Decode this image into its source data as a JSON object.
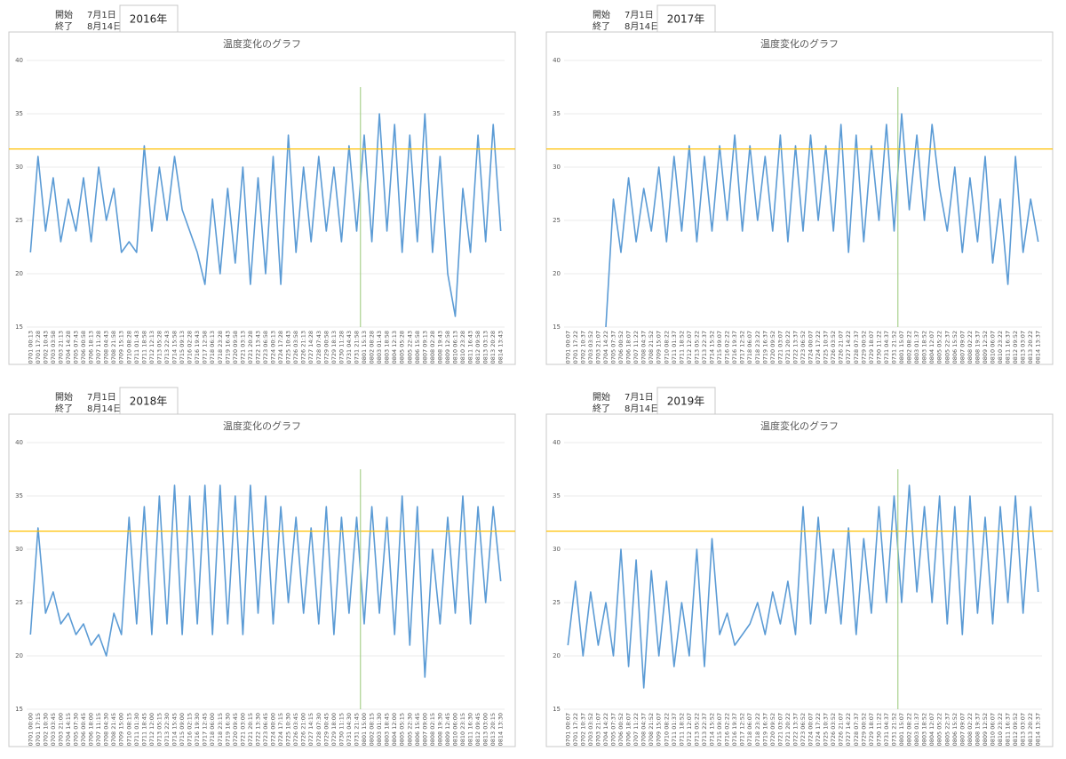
{
  "chart_data": [
    {
      "type": "line",
      "start_label": "開始",
      "start": "7月1日",
      "end_label": "終了",
      "end": "8月14日",
      "year": "2016年",
      "title": "温度変化のグラフ",
      "categories": [
        "0701 00:13",
        "0701 17:28",
        "0702 10:43",
        "0703 03:58",
        "0703 21:13",
        "0704 14:28",
        "0705 07:43",
        "0706 00:58",
        "0706 18:13",
        "0707 11:28",
        "0708 04:43",
        "0708 21:58",
        "0709 15:13",
        "0710 08:28",
        "0711 01:43",
        "0711 18:58",
        "0712 12:13",
        "0713 05:28",
        "0713 22:43",
        "0714 15:58",
        "0715 09:13",
        "0716 02:28",
        "0716 19:43",
        "0717 12:58",
        "0718 06:13",
        "0718 23:28",
        "0719 16:43",
        "0720 09:58",
        "0721 03:13",
        "0721 20:28",
        "0722 13:43",
        "0723 06:58",
        "0724 00:13",
        "0724 17:28",
        "0725 10:43",
        "0726 03:58",
        "0726 21:13",
        "0727 14:28",
        "0728 07:43",
        "0729 00:58",
        "0729 18:13",
        "0730 11:28",
        "0731 04:43",
        "0731 21:58",
        "0801 15:13",
        "0802 08:28",
        "0803 01:43",
        "0803 18:58",
        "0804 12:13",
        "0805 05:28",
        "0805 22:43",
        "0806 15:58",
        "0807 09:13",
        "0808 02:28",
        "0808 19:43",
        "0809 12:58",
        "0810 06:13",
        "0810 23:28",
        "0811 16:43",
        "0812 09:58",
        "0813 03:13",
        "0813 20:28",
        "0814 13:43"
      ],
      "values": [
        22,
        31,
        24,
        29,
        23,
        27,
        24,
        29,
        23,
        30,
        25,
        28,
        22,
        23,
        22,
        32,
        24,
        30,
        25,
        31,
        26,
        24,
        22,
        19,
        27,
        20,
        28,
        21,
        30,
        19,
        29,
        20,
        31,
        19,
        33,
        22,
        30,
        23,
        31,
        24,
        30,
        23,
        32,
        24,
        33,
        23,
        35,
        24,
        34,
        22,
        33,
        23,
        35,
        22,
        31,
        20,
        16,
        28,
        22,
        33,
        23,
        34,
        24
      ],
      "color": "#5b9bd5",
      "ylim": [
        15,
        40
      ],
      "yticks": [
        15,
        20,
        25,
        30,
        35,
        40
      ],
      "grid": true,
      "hline": {
        "value": 31.7,
        "color": "#ffc000"
      },
      "vline": {
        "x": 43.5,
        "color": "#a9d18e"
      }
    },
    {
      "type": "line",
      "start_label": "開始",
      "start": "7月1日",
      "end_label": "終了",
      "end": "8月14日",
      "year": "2017年",
      "title": "温度変化のグラフ",
      "categories": [
        "0701 00:07",
        "0701 17:22",
        "0702 10:37",
        "0703 03:52",
        "0703 21:07",
        "0704 14:22",
        "0705 07:37",
        "0706 00:52",
        "0706 18:07",
        "0707 11:22",
        "0708 04:37",
        "0708 21:52",
        "0709 15:07",
        "0710 08:22",
        "0711 01:37",
        "0711 18:52",
        "0712 12:07",
        "0713 05:22",
        "0713 22:37",
        "0714 15:52",
        "0715 09:07",
        "0716 02:22",
        "0716 19:37",
        "0717 12:52",
        "0718 06:07",
        "0718 23:22",
        "0719 16:37",
        "0720 09:52",
        "0721 03:07",
        "0721 20:22",
        "0722 13:37",
        "0723 06:52",
        "0724 00:07",
        "0724 17:22",
        "0725 10:37",
        "0726 03:52",
        "0726 21:07",
        "0727 14:22",
        "0728 07:37",
        "0729 00:52",
        "0729 18:07",
        "0730 11:22",
        "0731 04:37",
        "0731 21:52",
        "0801 15:07",
        "0802 08:22",
        "0803 01:37",
        "0803 18:52",
        "0804 12:07",
        "0805 05:22",
        "0805 22:37",
        "0806 15:52",
        "0807 09:07",
        "0808 02:22",
        "0808 19:37",
        "0809 12:52",
        "0810 06:07",
        "0810 23:22",
        "0811 16:37",
        "0812 09:52",
        "0813 03:07",
        "0813 20:22",
        "0814 13:37"
      ],
      "values": [
        null,
        null,
        null,
        null,
        null,
        15,
        27,
        22,
        29,
        23,
        28,
        24,
        30,
        23,
        31,
        24,
        32,
        23,
        31,
        24,
        32,
        25,
        33,
        24,
        32,
        25,
        31,
        24,
        33,
        23,
        32,
        24,
        33,
        25,
        32,
        24,
        34,
        22,
        33,
        23,
        32,
        25,
        34,
        24,
        35,
        26,
        33,
        25,
        34,
        28,
        24,
        30,
        22,
        29,
        23,
        31,
        21,
        27,
        19,
        31,
        22,
        27,
        23
      ],
      "color": "#5b9bd5",
      "ylim": [
        15,
        40
      ],
      "yticks": [
        15,
        20,
        25,
        30,
        35,
        40
      ],
      "grid": true,
      "hline": {
        "value": 31.7,
        "color": "#ffc000"
      },
      "vline": {
        "x": 43.5,
        "color": "#a9d18e"
      }
    },
    {
      "type": "line",
      "start_label": "開始",
      "start": "7月1日",
      "end_label": "終了",
      "end": "8月14日",
      "year": "2018年",
      "title": "温度変化のグラフ",
      "categories": [
        "0701 00:00",
        "0701 17:15",
        "0702 10:30",
        "0703 03:45",
        "0703 21:00",
        "0704 14:15",
        "0705 07:30",
        "0706 00:45",
        "0706 18:00",
        "0707 11:15",
        "0708 04:30",
        "0708 21:45",
        "0709 15:00",
        "0710 08:15",
        "0711 01:30",
        "0711 18:45",
        "0712 12:00",
        "0713 05:15",
        "0713 22:30",
        "0714 15:45",
        "0715 09:00",
        "0716 02:15",
        "0716 19:30",
        "0717 12:45",
        "0718 06:00",
        "0718 23:15",
        "0719 16:30",
        "0720 09:45",
        "0721 03:00",
        "0721 20:15",
        "0722 13:30",
        "0723 06:45",
        "0724 00:00",
        "0724 17:15",
        "0725 10:30",
        "0726 03:45",
        "0726 21:00",
        "0727 14:15",
        "0728 07:30",
        "0729 00:45",
        "0729 18:00",
        "0730 11:15",
        "0731 04:30",
        "0731 21:45",
        "0801 15:00",
        "0802 08:15",
        "0803 01:30",
        "0803 18:45",
        "0804 12:00",
        "0805 05:15",
        "0805 22:30",
        "0806 15:45",
        "0807 09:00",
        "0808 02:15",
        "0808 19:30",
        "0809 12:45",
        "0810 06:00",
        "0810 23:15",
        "0811 16:30",
        "0812 09:45",
        "0813 03:00",
        "0813 20:15",
        "0814 13:30"
      ],
      "values": [
        22,
        32,
        24,
        26,
        23,
        24,
        22,
        23,
        21,
        22,
        20,
        24,
        22,
        33,
        23,
        34,
        22,
        35,
        23,
        36,
        22,
        35,
        23,
        36,
        22,
        36,
        23,
        35,
        22,
        36,
        24,
        35,
        23,
        34,
        25,
        33,
        24,
        32,
        23,
        34,
        22,
        33,
        24,
        33,
        23,
        34,
        24,
        33,
        22,
        35,
        21,
        34,
        18,
        30,
        23,
        33,
        24,
        35,
        23,
        34,
        25,
        34,
        27
      ],
      "color": "#5b9bd5",
      "ylim": [
        15,
        40
      ],
      "yticks": [
        15,
        20,
        25,
        30,
        35,
        40
      ],
      "grid": true,
      "hline": {
        "value": 31.7,
        "color": "#ffc000"
      },
      "vline": {
        "x": 43.5,
        "color": "#a9d18e"
      }
    },
    {
      "type": "line",
      "start_label": "開始",
      "start": "7月1日",
      "end_label": "終了",
      "end": "8月14日",
      "year": "2019年",
      "title": "温度変化のグラフ",
      "categories": [
        "0701 00:07",
        "0701 17:22",
        "0702 10:37",
        "0703 03:52",
        "0703 21:07",
        "0704 14:22",
        "0705 07:37",
        "0706 00:52",
        "0706 18:07",
        "0707 11:22",
        "0708 04:37",
        "0708 21:52",
        "0709 15:07",
        "0710 08:22",
        "0711 01:37",
        "0711 18:52",
        "0712 12:07",
        "0713 05:22",
        "0713 22:37",
        "0714 15:52",
        "0715 09:07",
        "0716 02:22",
        "0716 19:37",
        "0717 12:52",
        "0718 06:07",
        "0718 23:22",
        "0719 16:37",
        "0720 09:52",
        "0721 03:07",
        "0721 20:22",
        "0722 13:37",
        "0723 06:52",
        "0724 00:07",
        "0724 17:22",
        "0725 10:37",
        "0726 03:52",
        "0726 21:07",
        "0727 14:22",
        "0728 07:37",
        "0729 00:52",
        "0729 18:07",
        "0730 11:22",
        "0731 04:37",
        "0731 21:52",
        "0801 15:07",
        "0802 08:22",
        "0803 01:37",
        "0803 18:52",
        "0804 12:07",
        "0805 05:22",
        "0805 22:37",
        "0806 15:52",
        "0807 09:07",
        "0808 02:22",
        "0808 19:37",
        "0809 12:52",
        "0810 06:07",
        "0810 23:22",
        "0811 16:37",
        "0812 09:52",
        "0813 03:07",
        "0813 20:22",
        "0814 13:37"
      ],
      "values": [
        21,
        27,
        20,
        26,
        21,
        25,
        20,
        30,
        19,
        29,
        17,
        28,
        20,
        27,
        19,
        25,
        20,
        30,
        19,
        31,
        22,
        24,
        21,
        22,
        23,
        25,
        22,
        26,
        23,
        27,
        22,
        34,
        23,
        33,
        24,
        30,
        23,
        32,
        22,
        31,
        24,
        34,
        25,
        35,
        25,
        36,
        26,
        34,
        25,
        35,
        23,
        34,
        22,
        35,
        24,
        33,
        23,
        34,
        25,
        35,
        24,
        34,
        26
      ],
      "color": "#5b9bd5",
      "ylim": [
        15,
        40
      ],
      "yticks": [
        15,
        20,
        25,
        30,
        35,
        40
      ],
      "grid": true,
      "hline": {
        "value": 31.7,
        "color": "#ffc000"
      },
      "vline": {
        "x": 43.5,
        "color": "#a9d18e"
      }
    }
  ]
}
